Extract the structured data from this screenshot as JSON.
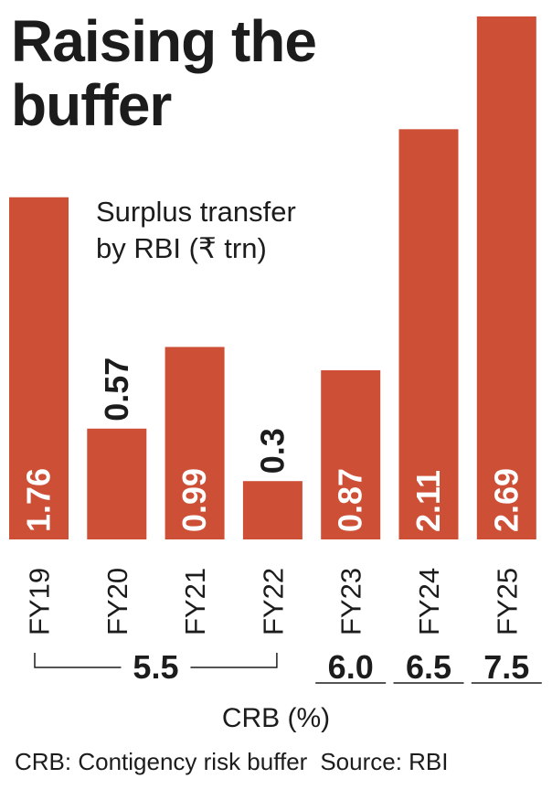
{
  "title": "Raising the buffer",
  "subtitle": "Surplus transfer\nby RBI (₹ trn)",
  "crb_label": "CRB (%)",
  "footer": {
    "note": "CRB: Contigency risk buffer",
    "source": "Source: RBI"
  },
  "colors": {
    "bar": "#cd4f36",
    "bar_label_inside": "#ffffff",
    "text": "#1c1c1c",
    "line": "#1c1c1c"
  },
  "chart_data": {
    "type": "bar",
    "categories": [
      "FY19",
      "FY20",
      "FY21",
      "FY22",
      "FY23",
      "FY24",
      "FY25"
    ],
    "values": [
      1.76,
      0.57,
      0.99,
      0.3,
      0.87,
      2.11,
      2.69
    ],
    "value_labels": [
      "1.76",
      "0.57",
      "0.99",
      "0.3",
      "0.87",
      "2.11",
      "2.69"
    ],
    "ylim": [
      0,
      2.69
    ],
    "ylabel": "Surplus transfer by RBI (₹ trn)",
    "crb_groups": [
      {
        "label": "5.5",
        "categories": [
          "FY19",
          "FY20",
          "FY21",
          "FY22"
        ]
      },
      {
        "label": "6.0",
        "categories": [
          "FY23"
        ]
      },
      {
        "label": "6.5",
        "categories": [
          "FY24"
        ]
      },
      {
        "label": "7.5",
        "categories": [
          "FY25"
        ]
      }
    ]
  }
}
